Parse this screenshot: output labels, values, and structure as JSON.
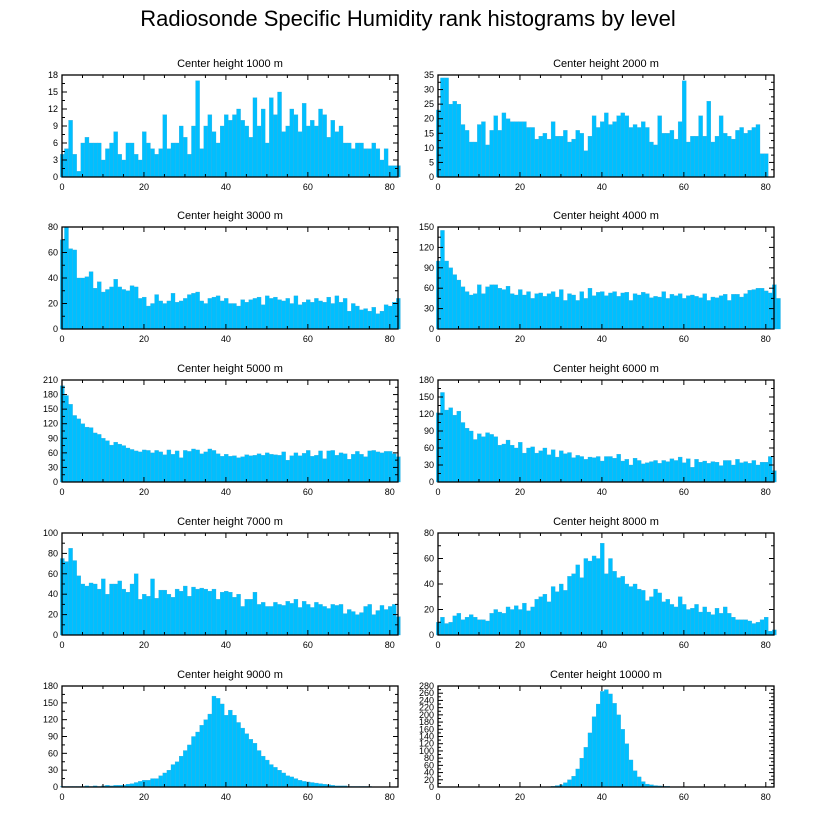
{
  "title": "Radiosonde Specific Humidity rank histograms by level",
  "bar_color": "#00BFFF",
  "chart_data": [
    {
      "type": "bar",
      "title": "Center height 1000 m",
      "xlim": [
        0,
        82
      ],
      "ylim": [
        0,
        18
      ],
      "xticks": [
        0,
        20,
        40,
        60,
        80
      ],
      "yticks": [
        0,
        3,
        6,
        9,
        12,
        15,
        18
      ],
      "values": [
        4,
        5,
        10,
        4,
        1,
        6,
        7,
        6,
        6,
        6,
        3,
        5,
        6,
        8,
        4,
        3,
        6,
        6,
        4,
        3,
        8,
        6,
        5,
        4,
        5,
        11,
        5,
        6,
        6,
        9,
        7,
        4,
        9,
        17,
        5,
        9,
        11,
        8,
        6,
        9,
        11,
        10,
        11,
        12,
        10,
        9,
        7,
        14,
        9,
        12,
        6,
        14,
        11,
        15,
        8,
        9,
        12,
        11,
        8,
        13,
        9,
        10,
        9,
        12,
        11,
        7,
        10,
        8,
        9,
        6,
        6,
        5,
        6,
        6,
        5,
        5,
        6,
        5,
        3,
        5,
        2,
        2,
        2
      ],
      "bar_offset": -0.4
    },
    {
      "type": "bar",
      "title": "Center height 2000 m",
      "xlim": [
        0,
        82
      ],
      "ylim": [
        0,
        35
      ],
      "xticks": [
        0,
        20,
        40,
        60,
        80
      ],
      "yticks": [
        0,
        5,
        10,
        15,
        20,
        25,
        30,
        35
      ],
      "values": [
        23,
        34,
        34,
        25,
        26,
        25,
        18,
        16,
        12,
        12,
        18,
        19,
        11,
        16,
        21,
        16,
        22,
        20,
        19,
        19,
        19,
        19,
        17,
        17,
        13,
        14,
        15,
        13,
        19,
        14,
        14,
        16,
        12,
        13,
        16,
        15,
        9,
        14,
        21,
        17,
        19,
        22,
        18,
        19,
        21,
        22,
        21,
        17,
        18,
        17,
        19,
        17,
        12,
        11,
        21,
        15,
        15,
        16,
        13,
        19,
        33,
        12,
        14,
        14,
        21,
        14,
        26,
        12,
        14,
        21,
        15,
        14,
        13,
        16,
        17,
        15,
        16,
        17,
        18,
        8,
        8
      ],
      "bar_offset": -0.4
    },
    {
      "type": "bar",
      "title": "Center height 3000 m",
      "xlim": [
        0,
        82
      ],
      "ylim": [
        0,
        80
      ],
      "xticks": [
        0,
        20,
        40,
        60,
        80
      ],
      "yticks": [
        0,
        20,
        40,
        60,
        80
      ],
      "values": [
        70,
        80,
        63,
        62,
        40,
        40,
        41,
        45,
        32,
        37,
        29,
        31,
        33,
        39,
        33,
        31,
        30,
        34,
        33,
        24,
        25,
        18,
        20,
        27,
        22,
        20,
        22,
        28,
        21,
        22,
        24,
        27,
        28,
        29,
        22,
        20,
        24,
        25,
        26,
        22,
        24,
        20,
        20,
        18,
        23,
        21,
        23,
        24,
        25,
        19,
        26,
        24,
        25,
        23,
        22,
        24,
        20,
        26,
        19,
        21,
        23,
        21,
        24,
        22,
        21,
        25,
        20,
        26,
        21,
        24,
        14,
        20,
        18,
        15,
        16,
        14,
        17,
        12,
        14,
        19,
        18,
        21,
        24
      ],
      "bar_offset": -0.4
    },
    {
      "type": "bar",
      "title": "Center height 4000 m",
      "xlim": [
        0,
        82
      ],
      "ylim": [
        0,
        150
      ],
      "xticks": [
        0,
        20,
        40,
        60,
        80
      ],
      "yticks": [
        0,
        30,
        60,
        90,
        120,
        150
      ],
      "values": [
        100,
        145,
        100,
        90,
        80,
        72,
        62,
        55,
        50,
        52,
        65,
        52,
        62,
        65,
        65,
        60,
        58,
        63,
        52,
        50,
        58,
        50,
        55,
        45,
        52,
        53,
        48,
        52,
        55,
        47,
        58,
        42,
        52,
        50,
        42,
        55,
        45,
        60,
        49,
        54,
        55,
        49,
        53,
        55,
        48,
        53,
        54,
        42,
        52,
        50,
        54,
        52,
        46,
        48,
        47,
        55,
        45,
        51,
        49,
        52,
        45,
        49,
        50,
        48,
        46,
        52,
        42,
        47,
        46,
        49,
        51,
        42,
        51,
        51,
        47,
        52,
        57,
        58,
        60,
        60,
        56,
        53,
        65,
        45
      ],
      "bar_offset": -0.4
    },
    {
      "type": "bar",
      "title": "Center height 5000 m",
      "xlim": [
        0,
        82
      ],
      "ylim": [
        0,
        210
      ],
      "xticks": [
        0,
        20,
        40,
        60,
        80
      ],
      "yticks": [
        0,
        30,
        60,
        90,
        120,
        150,
        180,
        210
      ],
      "values": [
        198,
        178,
        160,
        137,
        130,
        120,
        113,
        112,
        101,
        98,
        90,
        85,
        76,
        82,
        78,
        75,
        70,
        67,
        64,
        62,
        66,
        65,
        60,
        65,
        62,
        56,
        66,
        57,
        64,
        50,
        65,
        63,
        68,
        66,
        58,
        62,
        68,
        65,
        58,
        53,
        57,
        53,
        54,
        50,
        52,
        56,
        54,
        55,
        58,
        55,
        60,
        57,
        56,
        55,
        62,
        45,
        54,
        60,
        54,
        59,
        65,
        53,
        55,
        64,
        48,
        64,
        65,
        55,
        60,
        58,
        47,
        57,
        63,
        57,
        52,
        64,
        65,
        62,
        60,
        63,
        63,
        58,
        52
      ],
      "bar_offset": -0.4
    },
    {
      "type": "bar",
      "title": "Center height 6000 m",
      "xlim": [
        0,
        82
      ],
      "ylim": [
        0,
        180
      ],
      "xticks": [
        0,
        20,
        40,
        60,
        80
      ],
      "yticks": [
        0,
        30,
        60,
        90,
        120,
        150,
        180
      ],
      "values": [
        122,
        158,
        127,
        131,
        118,
        125,
        105,
        95,
        90,
        75,
        85,
        80,
        87,
        84,
        80,
        65,
        67,
        74,
        65,
        60,
        70,
        51,
        60,
        62,
        51,
        55,
        60,
        48,
        57,
        44,
        55,
        50,
        52,
        43,
        47,
        45,
        40,
        44,
        43,
        45,
        37,
        45,
        45,
        42,
        49,
        37,
        40,
        30,
        42,
        38,
        32,
        34,
        36,
        38,
        33,
        38,
        36,
        41,
        38,
        44,
        34,
        41,
        26,
        40,
        35,
        37,
        33,
        36,
        35,
        29,
        38,
        38,
        30,
        40,
        34,
        36,
        33,
        38,
        30,
        35,
        35,
        45,
        20
      ],
      "bar_offset": -0.4
    },
    {
      "type": "bar",
      "title": "Center height 7000 m",
      "xlim": [
        0,
        82
      ],
      "ylim": [
        0,
        100
      ],
      "xticks": [
        0,
        20,
        40,
        60,
        80
      ],
      "yticks": [
        0,
        20,
        40,
        60,
        80,
        100
      ],
      "values": [
        75,
        72,
        85,
        73,
        58,
        50,
        48,
        51,
        50,
        45,
        55,
        40,
        50,
        50,
        53,
        45,
        42,
        50,
        60,
        35,
        40,
        38,
        55,
        36,
        44,
        44,
        40,
        37,
        45,
        43,
        48,
        38,
        47,
        45,
        46,
        45,
        43,
        45,
        35,
        42,
        43,
        42,
        37,
        40,
        28,
        35,
        35,
        42,
        30,
        32,
        28,
        28,
        32,
        30,
        29,
        33,
        31,
        35,
        27,
        33,
        30,
        27,
        32,
        30,
        28,
        26,
        30,
        29,
        30,
        21,
        25,
        23,
        20,
        22,
        28,
        30,
        20,
        24,
        29,
        25,
        28,
        30,
        18
      ],
      "bar_offset": -0.4
    },
    {
      "type": "bar",
      "title": "Center height 8000 m",
      "xlim": [
        0,
        82
      ],
      "ylim": [
        0,
        80
      ],
      "xticks": [
        0,
        20,
        40,
        60,
        80
      ],
      "yticks": [
        0,
        20,
        40,
        60,
        80
      ],
      "values": [
        10,
        14,
        9,
        10,
        15,
        17,
        12,
        14,
        16,
        14,
        12,
        12,
        11,
        17,
        20,
        18,
        17,
        22,
        20,
        23,
        20,
        25,
        19,
        22,
        28,
        30,
        32,
        26,
        38,
        34,
        40,
        35,
        46,
        48,
        55,
        45,
        60,
        58,
        62,
        60,
        72,
        48,
        60,
        50,
        45,
        46,
        40,
        38,
        40,
        36,
        35,
        27,
        30,
        36,
        33,
        26,
        28,
        24,
        22,
        30,
        24,
        20,
        21,
        24,
        18,
        22,
        18,
        16,
        21,
        17,
        22,
        17,
        14,
        12,
        12,
        12,
        11,
        9,
        10,
        12,
        14,
        3,
        4
      ],
      "bar_offset": -0.4
    },
    {
      "type": "bar",
      "title": "Center height 9000 m",
      "xlim": [
        0,
        82
      ],
      "ylim": [
        0,
        180
      ],
      "xticks": [
        0,
        20,
        40,
        60,
        80
      ],
      "yticks": [
        0,
        30,
        60,
        90,
        120,
        150,
        180
      ],
      "values": [
        1,
        1,
        1,
        1,
        1,
        1,
        2,
        1,
        2,
        1,
        2,
        3,
        2,
        3,
        3,
        3,
        5,
        6,
        8,
        10,
        12,
        12,
        15,
        15,
        20,
        25,
        30,
        40,
        45,
        55,
        65,
        75,
        90,
        98,
        110,
        120,
        130,
        162,
        158,
        148,
        128,
        137,
        128,
        115,
        105,
        95,
        85,
        78,
        65,
        55,
        48,
        40,
        35,
        30,
        25,
        20,
        18,
        15,
        12,
        10,
        9,
        8,
        7,
        6,
        5,
        4,
        3,
        2,
        2,
        2,
        1,
        1,
        1,
        1,
        1,
        1,
        0,
        0,
        0,
        0,
        0,
        0
      ],
      "bar_offset": -0.4
    },
    {
      "type": "bar",
      "title": "Center height 10000 m",
      "xlim": [
        0,
        82
      ],
      "ylim": [
        0,
        280
      ],
      "xticks": [
        0,
        20,
        40,
        60,
        80
      ],
      "yticks": [
        0,
        20,
        40,
        60,
        80,
        100,
        120,
        140,
        160,
        180,
        200,
        220,
        240,
        260,
        280
      ],
      "values": [
        0,
        0,
        0,
        0,
        0,
        0,
        0,
        0,
        0,
        0,
        0,
        0,
        0,
        0,
        0,
        0,
        0,
        0,
        0,
        0,
        0,
        0,
        0,
        0,
        0,
        0,
        0,
        1,
        2,
        4,
        6,
        12,
        20,
        30,
        50,
        80,
        110,
        150,
        195,
        230,
        265,
        270,
        258,
        232,
        200,
        160,
        120,
        75,
        45,
        28,
        15,
        8,
        6,
        4,
        3,
        2,
        2,
        1,
        1,
        1,
        1,
        1,
        0,
        0,
        0,
        0,
        0,
        0,
        0,
        0,
        0,
        0,
        0,
        0,
        0,
        0,
        0,
        0,
        0,
        0,
        0,
        0
      ],
      "bar_offset": -0.4
    }
  ]
}
